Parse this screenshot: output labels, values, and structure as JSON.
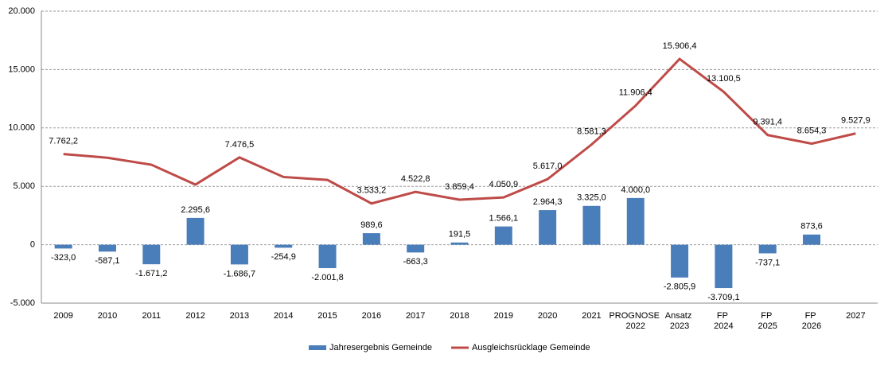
{
  "chart_data": {
    "type": "bar_line",
    "categories": [
      "2009",
      "2010",
      "2011",
      "2012",
      "2013",
      "2014",
      "2015",
      "2016",
      "2017",
      "2018",
      "2019",
      "2020",
      "2021",
      "PROGNOSE 2022",
      "Ansatz 2023",
      "FP 2024",
      "FP 2025",
      "FP 2026",
      "2027"
    ],
    "series": [
      {
        "name": "Jahresergebnis Gemeinde",
        "type": "bar",
        "color": "#4a7ebb",
        "values": [
          -323.0,
          -587.1,
          -1671.2,
          2295.6,
          -1686.7,
          -254.9,
          -2001.8,
          989.6,
          -663.3,
          191.5,
          1566.1,
          2964.3,
          3325.0,
          4000.0,
          -2805.9,
          -3709.1,
          -737.1,
          873.6,
          null
        ],
        "value_labels": [
          "-323,0",
          "-587,1",
          "-1.671,2",
          "2.295,6",
          "-1.686,7",
          "-254,9",
          "-2.001,8",
          "989,6",
          "-663,3",
          "191,5",
          "1.566,1",
          "2.964,3",
          "3.325,0",
          "4.000,0",
          "-2.805,9",
          "-3.709,1",
          "-737,1",
          "873,6",
          null
        ]
      },
      {
        "name": "Ausgleichsrücklage Gemeinde",
        "type": "line",
        "color": "#be4b48",
        "values": [
          7762.2,
          7450,
          6850,
          5150,
          7476.5,
          5800,
          5550,
          3533.2,
          4522.8,
          3859.4,
          4050.9,
          5617.0,
          8581.3,
          11906.4,
          15906.4,
          13100.5,
          9391.4,
          8654.3,
          9527.9
        ],
        "value_labels": [
          "7.762,2",
          null,
          null,
          null,
          "7.476,5",
          null,
          null,
          "3.533,2",
          "4.522,8",
          "3.859,4",
          "4.050,9",
          "5.617,0",
          "8.581,3",
          "11.906,4",
          "15.906,4",
          "13.100,5",
          "9.391,4",
          "8.654,3",
          "9.527,9"
        ]
      }
    ],
    "ylim": [
      -5000,
      20000
    ],
    "yticks": [
      {
        "value": -5000,
        "label": "-5.000"
      },
      0,
      {
        "value": 5000,
        "label": "5.000"
      },
      {
        "value": 10000,
        "label": "10.000"
      },
      {
        "value": 15000,
        "label": "15.000"
      },
      {
        "value": 20000,
        "label": "20.000"
      }
    ],
    "grid": true,
    "legend": "bottom"
  }
}
